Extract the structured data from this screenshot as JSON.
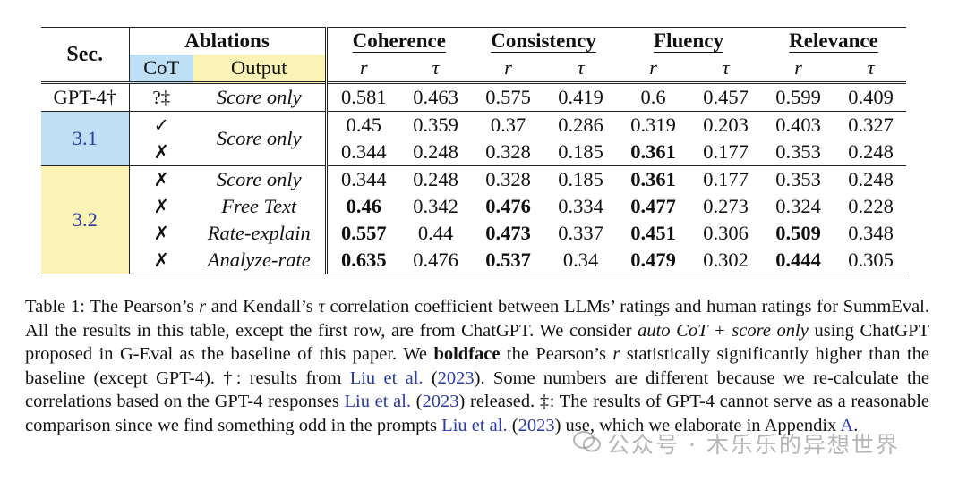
{
  "table": {
    "header": {
      "sec": "Sec.",
      "ablations": "Ablations",
      "cot": "CoT",
      "output": "Output",
      "metrics": [
        "Coherence",
        "Consistency",
        "Fluency",
        "Relevance"
      ],
      "r": "r",
      "tau": "τ"
    },
    "rows": [
      {
        "sec": "GPT-4†",
        "cot": "?‡",
        "output": "Score only",
        "values": [
          "0.581",
          "0.463",
          "0.575",
          "0.419",
          "0.6",
          "0.457",
          "0.599",
          "0.409"
        ],
        "bold": []
      },
      {
        "sec": "3.1",
        "cot": "✓",
        "output": "Score only",
        "values": [
          "0.45",
          "0.359",
          "0.37",
          "0.286",
          "0.319",
          "0.203",
          "0.403",
          "0.327"
        ],
        "bold": []
      },
      {
        "sec": "",
        "cot": "✗",
        "output": "",
        "values": [
          "0.344",
          "0.248",
          "0.328",
          "0.185",
          "0.361",
          "0.177",
          "0.353",
          "0.248"
        ],
        "bold": [
          4
        ]
      },
      {
        "sec": "3.2",
        "cot": "✗",
        "output": "Score only",
        "values": [
          "0.344",
          "0.248",
          "0.328",
          "0.185",
          "0.361",
          "0.177",
          "0.353",
          "0.248"
        ],
        "bold": [
          4
        ]
      },
      {
        "sec": "",
        "cot": "✗",
        "output": "Free Text",
        "values": [
          "0.46",
          "0.342",
          "0.476",
          "0.334",
          "0.477",
          "0.273",
          "0.324",
          "0.228"
        ],
        "bold": [
          0,
          2,
          4
        ]
      },
      {
        "sec": "",
        "cot": "✗",
        "output": "Rate-explain",
        "values": [
          "0.557",
          "0.44",
          "0.473",
          "0.337",
          "0.451",
          "0.306",
          "0.509",
          "0.348"
        ],
        "bold": [
          0,
          2,
          4,
          6
        ]
      },
      {
        "sec": "",
        "cot": "✗",
        "output": "Analyze-rate",
        "values": [
          "0.635",
          "0.476",
          "0.537",
          "0.34",
          "0.479",
          "0.302",
          "0.444",
          "0.305"
        ],
        "bold": [
          0,
          2,
          4,
          6
        ]
      }
    ]
  },
  "caption": {
    "p1": "Table 1: The Pearson’s ",
    "r1": "r",
    "p2": " and Kendall’s ",
    "tau1": "τ",
    "p3": " correlation coefficient between LLMs’ ratings and human ratings for SummEval. All the results in this table, except the first row, are from ChatGPT. We consider ",
    "it1": "auto CoT + score only",
    "p4": " using ChatGPT proposed in G-Eval as the baseline of this paper. We ",
    "b1": "boldface",
    "p5": " the Pearson’s ",
    "r2": "r",
    "p6": " statistically significantly higher than the baseline (except GPT-4). †: results from ",
    "cite1": "Liu et al.",
    "p7": " (",
    "year1": "2023",
    "p8": "). Some numbers are different because we re-calculate the correlations based on the GPT-4 responses ",
    "cite2": "Liu et al.",
    "p9": " (",
    "year2": "2023",
    "p10": ") released. ‡: The results of GPT-4 cannot serve as a reasonable comparison since we find something odd in the prompts ",
    "cite3": "Liu et al.",
    "p11": " (",
    "year3": "2023",
    "p12": ") use, which we elaborate in Appendix ",
    "appendix": "A",
    "p13": "."
  },
  "watermark": "公众号 · 木乐乐的异想世界"
}
